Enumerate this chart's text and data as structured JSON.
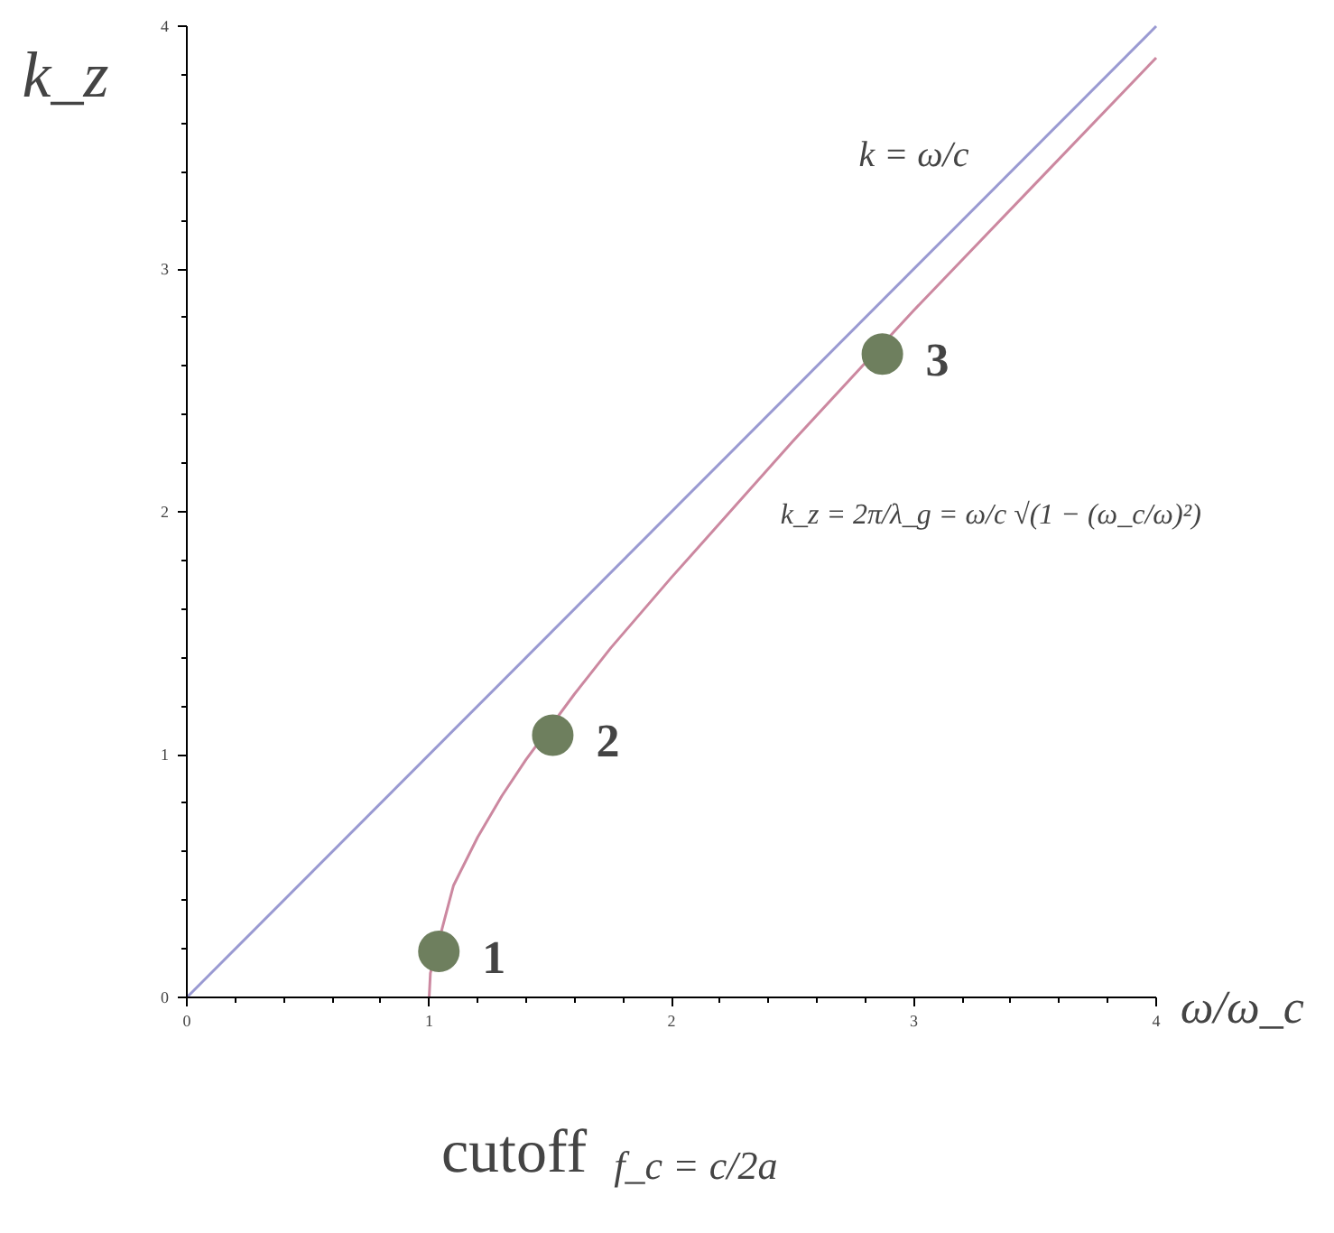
{
  "chart_data": {
    "type": "line",
    "xlabel": "ω/ω_c",
    "ylabel": "k_z",
    "xlim": [
      0,
      4
    ],
    "ylim": [
      0,
      4
    ],
    "xticks": [
      0,
      1,
      2,
      3,
      4
    ],
    "yticks": [
      0,
      1,
      2,
      3,
      4
    ],
    "grid": false,
    "series": [
      {
        "color": "#9a9ad2",
        "x": [
          0,
          4
        ],
        "values": [
          0,
          4
        ]
      },
      {
        "color": "#cc88a0",
        "x": [
          1,
          1.005,
          1.1,
          1.2,
          1.3,
          1.4,
          1.6,
          1.75,
          2,
          2.5,
          3,
          3.5,
          4
        ],
        "values": [
          0,
          0.1,
          0.46,
          0.66,
          0.83,
          0.98,
          1.25,
          1.44,
          1.73,
          2.29,
          2.83,
          3.35,
          3.87
        ]
      },
      {
        "type": "scatter",
        "color": "#6e7f5e",
        "marker": "circle",
        "x": [
          1.04,
          1.51,
          2.87
        ],
        "values": [
          0.19,
          1.08,
          2.65
        ]
      }
    ],
    "annotations": [
      "k = ω/c",
      "k_z = 2π/λ_g = ω/c √(1 − (ω_c/ω)²)",
      "cutoff",
      "f_c = c/2a",
      {
        "text": "1",
        "x": 1.04,
        "y": 0.19
      },
      {
        "text": "2",
        "x": 1.51,
        "y": 1.08
      },
      {
        "text": "3",
        "x": 2.87,
        "y": 2.65
      }
    ]
  }
}
